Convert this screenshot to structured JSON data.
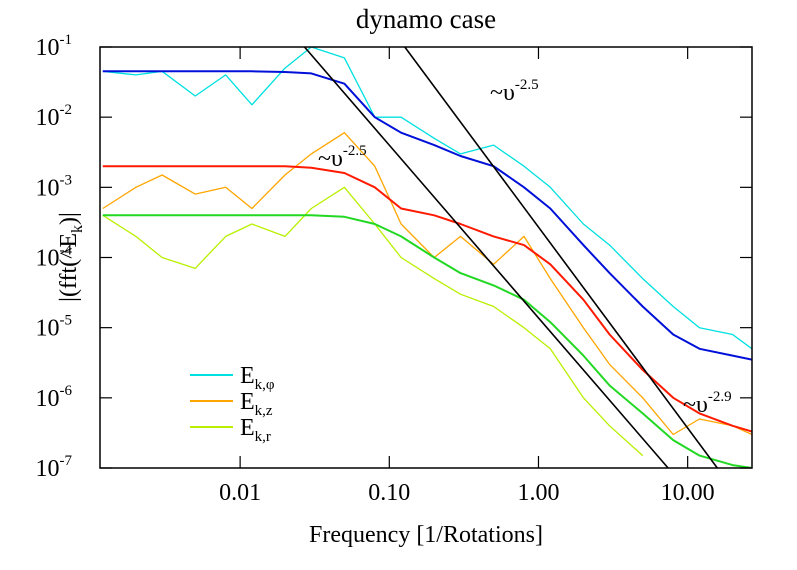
{
  "chart_data": {
    "type": "line",
    "title": "dynamo case",
    "xlabel": "Frequency [1/Rotations]",
    "ylabel": [
      "|(fft(^E",
      "k",
      ")|"
    ],
    "log_x": true,
    "log_y": true,
    "xlim": [
      0.00115,
      27
    ],
    "ylim": [
      1e-07,
      0.1
    ],
    "xticks": [
      0.01,
      {
        "value": 0.1,
        "label": "0.10"
      },
      {
        "value": 1,
        "label": "1.00"
      },
      {
        "value": 10,
        "label": "10.00"
      }
    ],
    "yticks": [
      {
        "value": 1e-07,
        "label": "10",
        "exp": "-7"
      },
      {
        "value": 1e-06,
        "label": "10",
        "exp": "-6"
      },
      {
        "value": 1e-05,
        "label": "10",
        "exp": "-5"
      },
      {
        "value": 0.0001,
        "label": "10",
        "exp": "-4"
      },
      {
        "value": 0.001,
        "label": "10",
        "exp": "-3"
      },
      {
        "value": 0.01,
        "label": "10",
        "exp": "-2"
      },
      {
        "value": 0.1,
        "label": "10",
        "exp": "-1"
      }
    ],
    "legend": "bottom-left",
    "x": [
      0.0012,
      0.002,
      0.003,
      0.005,
      0.008,
      0.012,
      0.02,
      0.03,
      0.05,
      0.08,
      0.12,
      0.2,
      0.3,
      0.5,
      0.8,
      1.2,
      2,
      3,
      5,
      8,
      12,
      20,
      27
    ],
    "series": [
      {
        "name": "E",
        "name_sub": "k,φ",
        "color": "#00e0e0",
        "values": [
          0.045,
          0.04,
          0.045,
          0.02,
          0.04,
          0.015,
          0.05,
          0.1,
          0.07,
          0.01,
          0.01,
          0.005,
          0.003,
          0.004,
          0.002,
          0.001,
          0.0003,
          0.00015,
          5e-05,
          2e-05,
          1e-05,
          8e-06,
          5e-06
        ]
      },
      {
        "color": "#0010d8",
        "values": [
          0.045,
          0.045,
          0.045,
          0.045,
          0.045,
          0.045,
          0.044,
          0.042,
          0.03,
          0.01,
          0.006,
          0.004,
          0.0028,
          0.002,
          0.001,
          0.0005,
          0.00015,
          6e-05,
          2e-05,
          8e-06,
          5e-06,
          4e-06,
          3.5e-06
        ]
      },
      {
        "name": "E",
        "name_sub": "k,z",
        "color": "#ffa500",
        "values": [
          0.0005,
          0.001,
          0.0015,
          0.0008,
          0.001,
          0.0005,
          0.0015,
          0.003,
          0.006,
          0.002,
          0.0003,
          0.0001,
          0.0002,
          8e-05,
          0.0002,
          5e-05,
          1e-05,
          3e-06,
          1e-06,
          3e-07,
          5e-07,
          4e-07,
          3e-07
        ]
      },
      {
        "color": "#ff1a00",
        "values": [
          0.002,
          0.002,
          0.002,
          0.002,
          0.002,
          0.002,
          0.002,
          0.0019,
          0.0016,
          0.001,
          0.0005,
          0.0004,
          0.0003,
          0.0002,
          0.00015,
          8e-05,
          2.5e-05,
          8e-06,
          2.5e-06,
          1e-06,
          6e-07,
          4e-07,
          3.3e-07
        ]
      },
      {
        "name": "E",
        "name_sub": "k,r",
        "color": "#b8f000",
        "values": [
          0.0004,
          0.0002,
          0.0001,
          7e-05,
          0.0002,
          0.0003,
          0.0002,
          0.0005,
          0.001,
          0.0003,
          0.0001,
          5e-05,
          3e-05,
          2e-05,
          1e-05,
          5e-06,
          1e-06,
          4e-07,
          1.5e-07,
          null,
          null,
          null,
          null
        ]
      },
      {
        "color": "#22d822",
        "values": [
          0.0004,
          0.0004,
          0.0004,
          0.0004,
          0.0004,
          0.0004,
          0.0004,
          0.0004,
          0.00038,
          0.0003,
          0.0002,
          0.0001,
          6e-05,
          4e-05,
          2.5e-05,
          1.2e-05,
          4e-06,
          1.5e-06,
          6e-07,
          2.5e-07,
          1.5e-07,
          1.1e-07,
          1e-07
        ]
      }
    ],
    "reference_lines": [
      {
        "color": "#000000",
        "x": [
          0.027,
          7.4
        ],
        "values": [
          0.1,
          1e-07
        ]
      },
      {
        "color": "#000000",
        "x": [
          0.127,
          15.8
        ],
        "values": [
          0.1,
          1e-07
        ]
      }
    ],
    "annotations": [
      {
        "text": "~υ",
        "sup": "-2.5"
      },
      {
        "text": "~υ",
        "sup": "-2.5"
      },
      {
        "text": "~υ",
        "sup": "-2.9"
      }
    ]
  }
}
